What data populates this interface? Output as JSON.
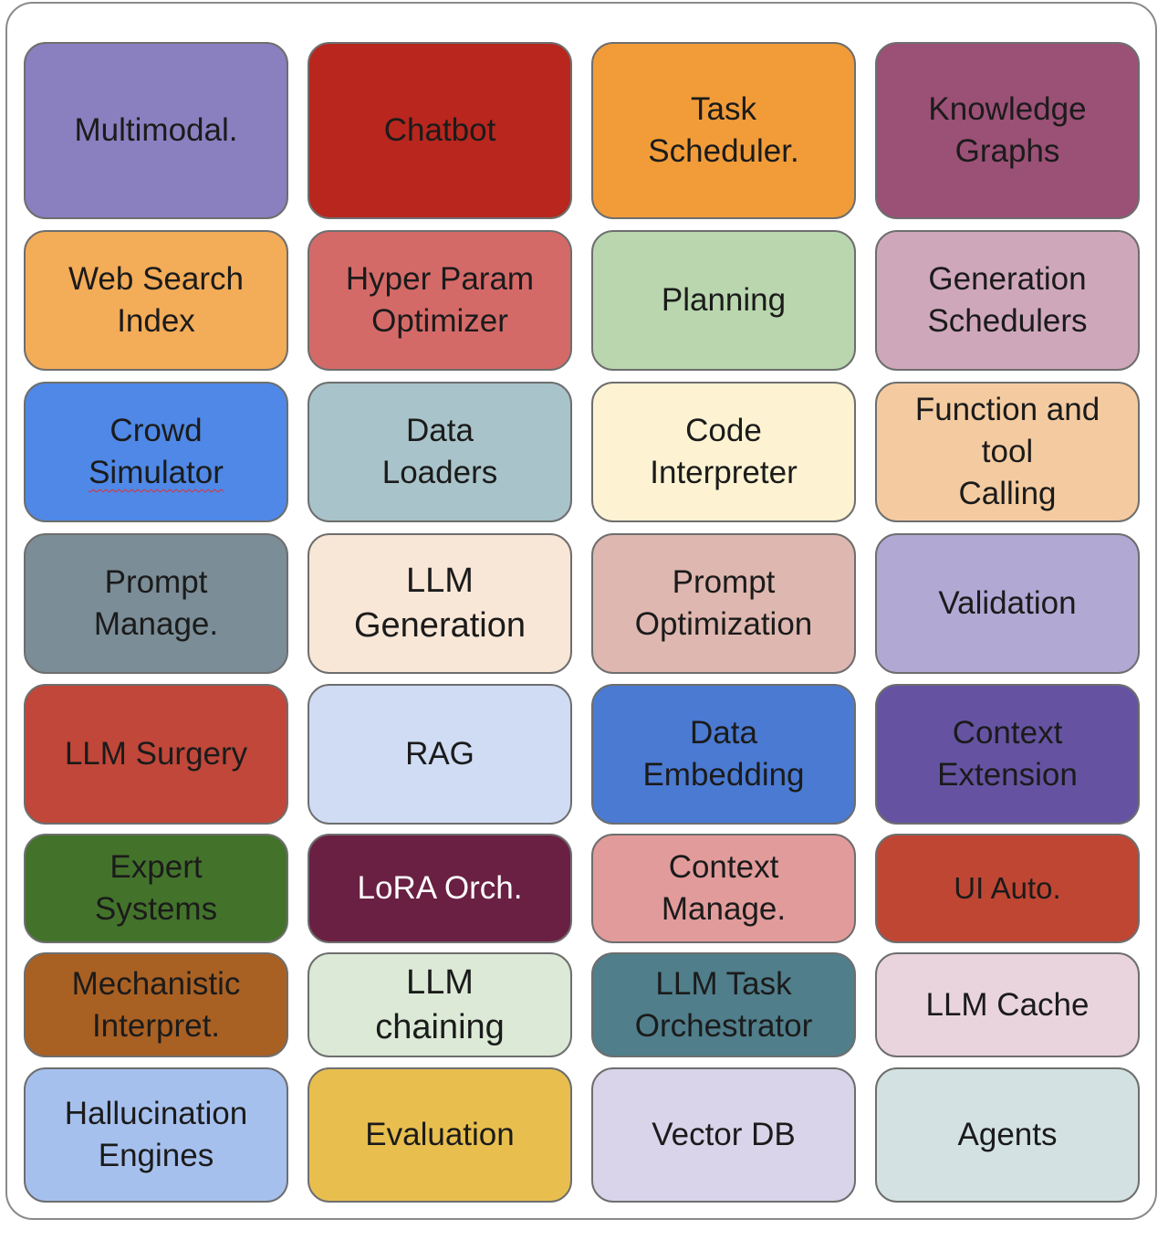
{
  "tiles": [
    {
      "lines": [
        "Multimodal."
      ],
      "bg": "#8a7fbf"
    },
    {
      "lines": [
        "Chatbot"
      ],
      "bg": "#b8261d"
    },
    {
      "lines": [
        "Task",
        "Scheduler."
      ],
      "bg": "#f19c39"
    },
    {
      "lines": [
        "Knowledge",
        "Graphs"
      ],
      "bg": "#9b5076"
    },
    {
      "lines": [
        "Web Search",
        "Index"
      ],
      "bg": "#f3ac58"
    },
    {
      "lines": [
        "Hyper Param",
        "Optimizer"
      ],
      "bg": "#d46a68"
    },
    {
      "lines": [
        "Planning"
      ],
      "bg": "#b9d6ae"
    },
    {
      "lines": [
        "Generation",
        "Schedulers"
      ],
      "bg": "#cfa7bb"
    },
    {
      "lines": [
        "Crowd",
        "Simulator"
      ],
      "bg": "#4f88e6"
    },
    {
      "lines": [
        "Data",
        "Loaders"
      ],
      "bg": "#a8c3c9"
    },
    {
      "lines": [
        "Code",
        "Interpreter"
      ],
      "bg": "#fdf3d2"
    },
    {
      "lines": [
        "Function and",
        "tool",
        "Calling"
      ],
      "bg": "#f4cba0"
    },
    {
      "lines": [
        "Prompt",
        "Manage."
      ],
      "bg": "#7b8d97"
    },
    {
      "lines": [
        "LLM",
        "Generation"
      ],
      "bg": "#f8e6d6"
    },
    {
      "lines": [
        "Prompt",
        "Optimization"
      ],
      "bg": "#deb7b0"
    },
    {
      "lines": [
        "Validation"
      ],
      "bg": "#b1a8d4"
    },
    {
      "lines": [
        "LLM Surgery"
      ],
      "bg": "#c0473a"
    },
    {
      "lines": [
        "RAG"
      ],
      "bg": "#cfdcf4"
    },
    {
      "lines": [
        "Data",
        "Embedding"
      ],
      "bg": "#4a7ad2"
    },
    {
      "lines": [
        "Context",
        "Extension"
      ],
      "bg": "#6553a2"
    },
    {
      "lines": [
        "Expert",
        "Systems"
      ],
      "bg": "#43732b"
    },
    {
      "lines": [
        "LoRA Orch."
      ],
      "bg": "#6a2043"
    },
    {
      "lines": [
        "Context",
        "Manage."
      ],
      "bg": "#e29b9b"
    },
    {
      "lines": [
        "UI Auto."
      ],
      "bg": "#bf4633"
    },
    {
      "lines": [
        "Mechanistic",
        "Interpret."
      ],
      "bg": "#a96023"
    },
    {
      "lines": [
        "LLM",
        "chaining"
      ],
      "bg": "#dbe9d6"
    },
    {
      "lines": [
        "LLM Task",
        "Orchestrator"
      ],
      "bg": "#507e8b"
    },
    {
      "lines": [
        "LLM Cache"
      ],
      "bg": "#e9d4dd"
    },
    {
      "lines": [
        "Hallucination",
        "Engines"
      ],
      "bg": "#a6c0ee"
    },
    {
      "lines": [
        "Evaluation"
      ],
      "bg": "#e8bf4f"
    },
    {
      "lines": [
        "Vector DB"
      ],
      "bg": "#d9d4ea"
    },
    {
      "lines": [
        "Agents"
      ],
      "bg": "#d3e1e2"
    }
  ]
}
